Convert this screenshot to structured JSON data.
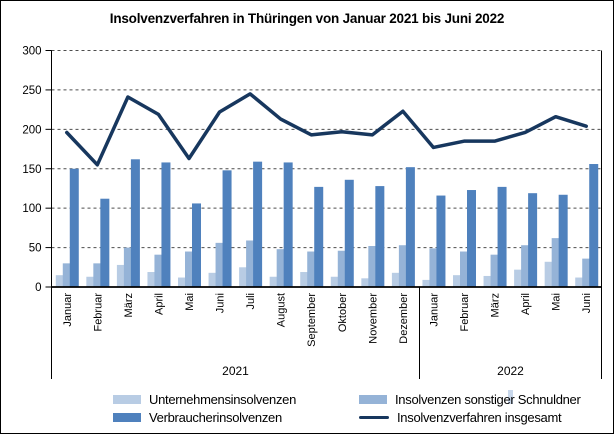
{
  "title": "Insolvenzverfahren in Thüringen von Januar 2021 bis Juni 2022",
  "y_axis": {
    "ticks": [
      "300",
      "250",
      "200",
      "150",
      "100",
      "50",
      "0"
    ]
  },
  "chart_data": {
    "type": "bar",
    "note": "grouped bars with overlaid total line",
    "categories": [
      "Januar",
      "Februar",
      "März",
      "April",
      "Mai",
      "Juni",
      "Juli",
      "August",
      "September",
      "Oktober",
      "November",
      "Dezember",
      "Januar",
      "Februar",
      "März",
      "April",
      "Mai",
      "Juni"
    ],
    "year_groups": [
      {
        "label": "2021",
        "months": 12
      },
      {
        "label": "2022",
        "months": 6
      }
    ],
    "series": [
      {
        "name": "Unternehmensinsolvenzen",
        "kind": "bar",
        "color": "#B8CCE4",
        "values": [
          15,
          13,
          28,
          19,
          12,
          18,
          25,
          13,
          19,
          13,
          11,
          18,
          9,
          15,
          14,
          22,
          32,
          12
        ]
      },
      {
        "name": "Insolvenzen sonstiger Schnuldner",
        "kind": "bar",
        "color": "#95B3D7",
        "values": [
          30,
          30,
          50,
          41,
          45,
          56,
          59,
          48,
          45,
          46,
          52,
          53,
          49,
          45,
          41,
          53,
          62,
          36
        ]
      },
      {
        "name": "Verbraucherinsolvenzen",
        "kind": "bar",
        "color": "#4F81BD",
        "values": [
          150,
          112,
          162,
          158,
          106,
          148,
          159,
          158,
          127,
          136,
          128,
          152,
          116,
          123,
          127,
          119,
          117,
          156
        ]
      },
      {
        "name": "Insolvenzverfahren insgesamt",
        "kind": "line",
        "color": "#17375E",
        "values": [
          196,
          155,
          241,
          219,
          163,
          222,
          245,
          213,
          193,
          197,
          193,
          223,
          177,
          185,
          185,
          196,
          216,
          204
        ]
      }
    ],
    "ylim": [
      0,
      300
    ],
    "ytick_step": 50,
    "grid": true,
    "legend_position": "bottom"
  },
  "legend": {
    "items": [
      {
        "label": "Unternehmensinsolvenzen",
        "kind": "bar",
        "color": "#B8CCE4"
      },
      {
        "label": "Insolvenzen sonstiger Schnuldner",
        "kind": "bar",
        "color": "#95B3D7"
      },
      {
        "label": "Verbraucherinsolvenzen",
        "kind": "bar",
        "color": "#4F81BD"
      },
      {
        "label": "Insolvenzverfahren insgesamt",
        "kind": "line",
        "color": "#17375E"
      }
    ]
  }
}
